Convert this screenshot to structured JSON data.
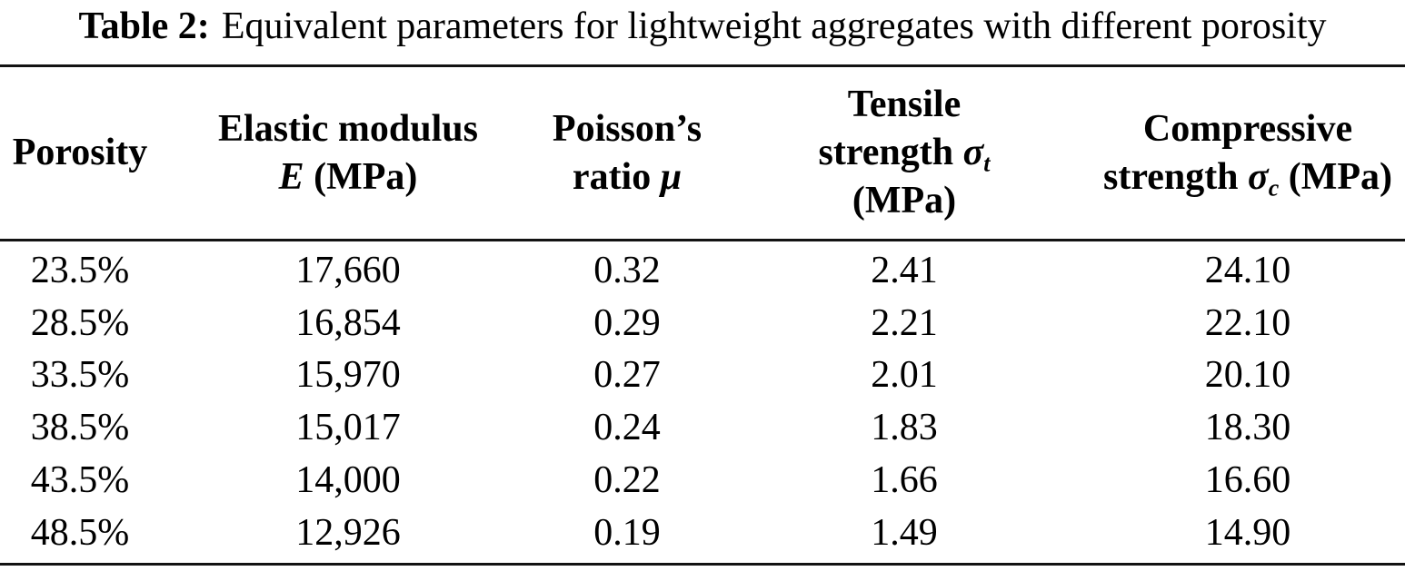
{
  "caption": {
    "label": "Table 2:",
    "text": "Equivalent parameters for lightweight aggregates with different porosity"
  },
  "table": {
    "headers": {
      "porosity": {
        "line1": "Porosity"
      },
      "elastic": {
        "line1": "Elastic modulus",
        "symbol": "E",
        "unit": "(MPa)"
      },
      "poisson": {
        "line1": "Poisson’s",
        "line2": "ratio",
        "symbol": "μ"
      },
      "tensile": {
        "line1": "Tensile",
        "line2": "strength",
        "symbol": "σ",
        "sub": "t",
        "unit": "(MPa)"
      },
      "compressive": {
        "line1": "Compressive",
        "line2": "strength",
        "symbol": "σ",
        "sub": "c",
        "unit": "(MPa)"
      }
    },
    "rows": [
      {
        "porosity": "23.5%",
        "elastic_modulus": "17,660",
        "poissons_ratio": "0.32",
        "tensile_strength": "2.41",
        "compressive_strength": "24.10"
      },
      {
        "porosity": "28.5%",
        "elastic_modulus": "16,854",
        "poissons_ratio": "0.29",
        "tensile_strength": "2.21",
        "compressive_strength": "22.10"
      },
      {
        "porosity": "33.5%",
        "elastic_modulus": "15,970",
        "poissons_ratio": "0.27",
        "tensile_strength": "2.01",
        "compressive_strength": "20.10"
      },
      {
        "porosity": "38.5%",
        "elastic_modulus": "15,017",
        "poissons_ratio": "0.24",
        "tensile_strength": "1.83",
        "compressive_strength": "18.30"
      },
      {
        "porosity": "43.5%",
        "elastic_modulus": "14,000",
        "poissons_ratio": "0.22",
        "tensile_strength": "1.66",
        "compressive_strength": "16.60"
      },
      {
        "porosity": "48.5%",
        "elastic_modulus": "12,926",
        "poissons_ratio": "0.19",
        "tensile_strength": "1.49",
        "compressive_strength": "14.90"
      }
    ]
  }
}
